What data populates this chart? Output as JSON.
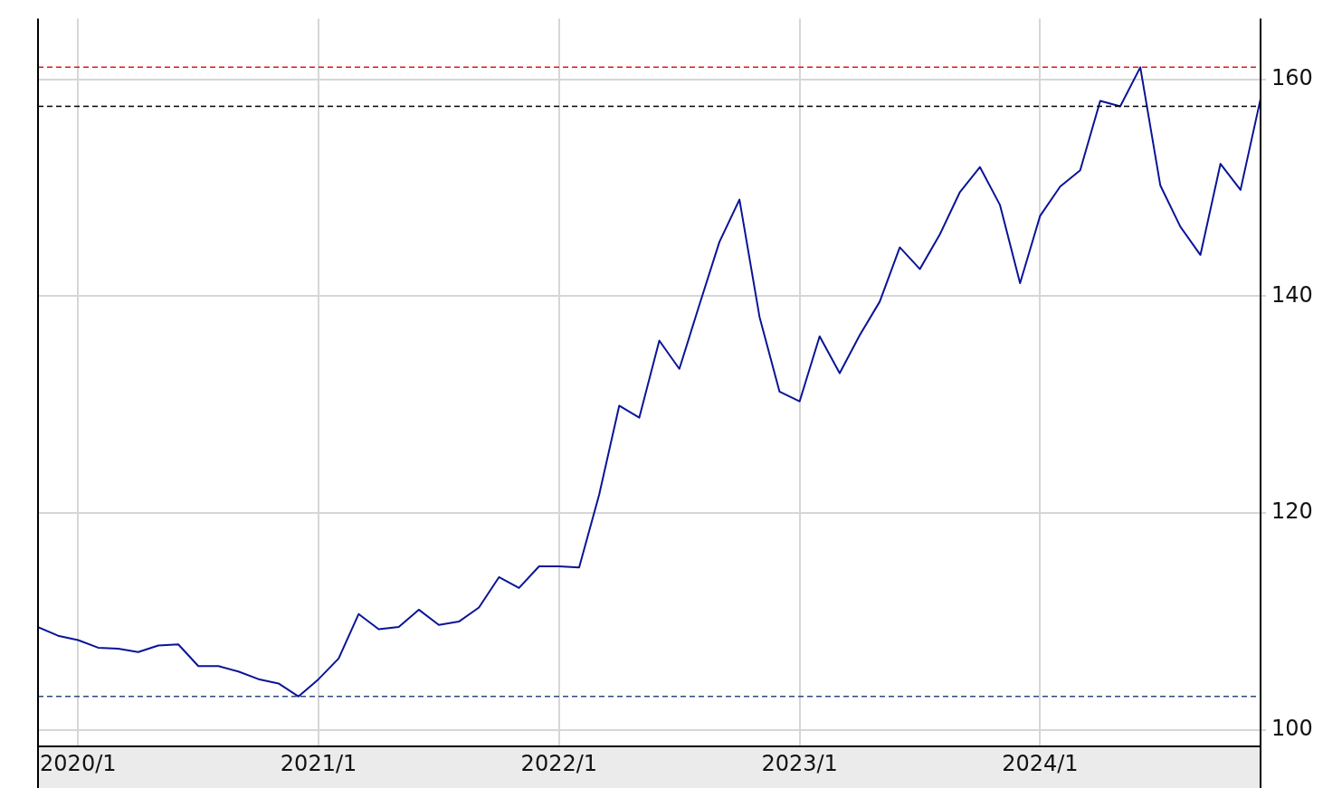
{
  "chart_data": {
    "type": "line",
    "x": [
      "2019-11",
      "2019-12",
      "2020-01",
      "2020-02",
      "2020-03",
      "2020-04",
      "2020-05",
      "2020-06",
      "2020-07",
      "2020-08",
      "2020-09",
      "2020-10",
      "2020-11",
      "2020-12",
      "2021-01",
      "2021-02",
      "2021-03",
      "2021-04",
      "2021-05",
      "2021-06",
      "2021-07",
      "2021-08",
      "2021-09",
      "2021-10",
      "2021-11",
      "2021-12",
      "2022-01",
      "2022-02",
      "2022-03",
      "2022-04",
      "2022-05",
      "2022-06",
      "2022-07",
      "2022-08",
      "2022-09",
      "2022-10",
      "2022-11",
      "2022-12",
      "2023-01",
      "2023-02",
      "2023-03",
      "2023-04",
      "2023-05",
      "2023-06",
      "2023-07",
      "2023-08",
      "2023-09",
      "2023-10",
      "2023-11",
      "2023-12",
      "2024-01",
      "2024-02",
      "2024-03",
      "2024-04",
      "2024-05",
      "2024-06",
      "2024-07",
      "2024-08",
      "2024-09",
      "2024-10",
      "2024-11",
      "2024-12"
    ],
    "series": [
      {
        "color": "#0a1496",
        "values": [
          109.5,
          108.7,
          108.3,
          107.6,
          107.5,
          107.2,
          107.8,
          107.9,
          105.9,
          105.9,
          105.4,
          104.7,
          104.3,
          103.1,
          104.7,
          106.6,
          110.7,
          109.3,
          109.5,
          111.1,
          109.7,
          110.0,
          111.3,
          114.1,
          113.1,
          115.1,
          115.1,
          115.0,
          121.7,
          129.9,
          128.8,
          135.9,
          133.3,
          139.2,
          145.0,
          148.9,
          138.1,
          131.2,
          130.3,
          136.3,
          132.9,
          136.4,
          139.5,
          144.5,
          142.5,
          145.7,
          149.6,
          151.9,
          148.4,
          141.2,
          147.4,
          150.1,
          151.6,
          158.0,
          157.5,
          161.1,
          150.2,
          146.4,
          143.8,
          152.2,
          149.8,
          158.2
        ]
      }
    ],
    "xlim": [
      "2019-11",
      "2024-12"
    ],
    "xticks": [
      {
        "value": "2020-01",
        "label": "2020/1"
      },
      {
        "value": "2021-01",
        "label": "2021/1"
      },
      {
        "value": "2022-01",
        "label": "2022/1"
      },
      {
        "value": "2023-01",
        "label": "2023/1"
      },
      {
        "value": "2024-01",
        "label": "2024/1"
      }
    ],
    "ylim": [
      98.5,
      165.6
    ],
    "yticks": [
      100,
      120,
      140,
      160
    ],
    "ref_lines": [
      {
        "axis": "y",
        "value": 161.1,
        "color": "#e01818",
        "line_style": "dashed"
      },
      {
        "axis": "y",
        "value": 157.5,
        "color": "#000000",
        "line_style": "dashed"
      },
      {
        "axis": "y",
        "value": 103.1,
        "color": "#2a4a80",
        "line_style": "dashed"
      }
    ],
    "grid": true,
    "legend": false,
    "marker": "none",
    "line_style": "solid"
  }
}
